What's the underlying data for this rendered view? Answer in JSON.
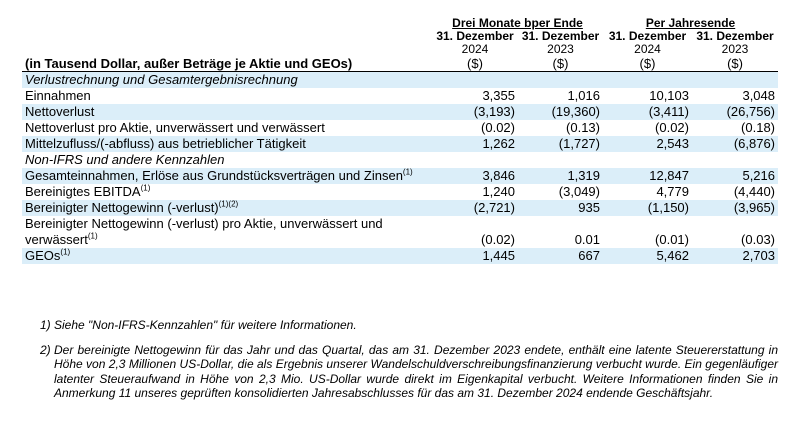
{
  "header": {
    "unit_label": "(in Tausend Dollar, außer Beträge je Aktie und GEOs)",
    "groups": [
      "Drei Monate bper Ende",
      "Per Jahresende"
    ],
    "columns": [
      {
        "date": "31. Dezember",
        "year": "2024",
        "unit": "($)"
      },
      {
        "date": "31. Dezember",
        "year": "2023",
        "unit": "($)"
      },
      {
        "date": "31. Dezember",
        "year": "2024",
        "unit": "($)"
      },
      {
        "date": "31. Dezember",
        "year": "2023",
        "unit": "($)"
      }
    ]
  },
  "sections": [
    {
      "title": "Verlustrechnung und Gesamtergebnisrechnung",
      "rows": [
        {
          "label": "Einnahmen",
          "values": [
            "3,355",
            "1,016",
            "10,103",
            "3,048"
          ]
        },
        {
          "label": "Nettoverlust",
          "values": [
            "(3,193)",
            "(19,360)",
            "(3,411)",
            "(26,756)"
          ]
        },
        {
          "label": "Nettoverlust pro Aktie, unverwässert und verwässert",
          "values": [
            "(0.02)",
            "(0.13)",
            "(0.02)",
            "(0.18)"
          ]
        },
        {
          "label": "Mittelzufluss/(-abfluss) aus betrieblicher Tätigkeit",
          "values": [
            "1,262",
            "(1,727)",
            "2,543",
            "(6,876)"
          ]
        }
      ]
    },
    {
      "title": "Non-IFRS und andere Kennzahlen",
      "rows": [
        {
          "label": "Gesamteinnahmen, Erlöse aus Grundstücksverträgen und Zinsen",
          "note": "(1)",
          "values": [
            "3,846",
            "1,319",
            "12,847",
            "5,216"
          ]
        },
        {
          "label": "Bereinigtes EBITDA",
          "note": "(1)",
          "values": [
            "1,240",
            "(3,049)",
            "4,779",
            "(4,440)"
          ]
        },
        {
          "label": "Bereinigter Nettogewinn (-verlust)",
          "note": "(1)(2)",
          "values": [
            "(2,721)",
            "935",
            "(1,150)",
            "(3,965)"
          ]
        },
        {
          "label": "Bereinigter Nettogewinn (-verlust) pro Aktie, unverwässert und verwässert",
          "note": "(1)",
          "values": [
            "(0.02)",
            "0.01",
            "(0.01)",
            "(0.03)"
          ]
        },
        {
          "label": "GEOs",
          "note": "(1)",
          "values": [
            "1,445",
            "667",
            "5,462",
            "2,703"
          ]
        }
      ]
    }
  ],
  "footnotes": [
    {
      "marker": "1)",
      "text": "Siehe \"Non-IFRS-Kennzahlen\" für weitere Informationen."
    },
    {
      "marker": "2)",
      "text": "Der bereinigte Nettogewinn für das Jahr und das Quartal, das am 31. Dezember 2023 endete, enthält eine latente Steuererstattung in Höhe von 2,3 Millionen US-Dollar, die als Ergebnis unserer Wandelschuldverschreibungsfinanzierung verbucht wurde. Ein gegenläufiger latenter Steueraufwand in Höhe von 2,3 Mio. US-Dollar wurde direkt im Eigenkapital verbucht. Weitere Informationen finden Sie in Anmerkung 11 unseres geprüften konsolidierten Jahresabschlusses für das am 31. Dezember 2024 endende Geschäftsjahr."
    }
  ]
}
